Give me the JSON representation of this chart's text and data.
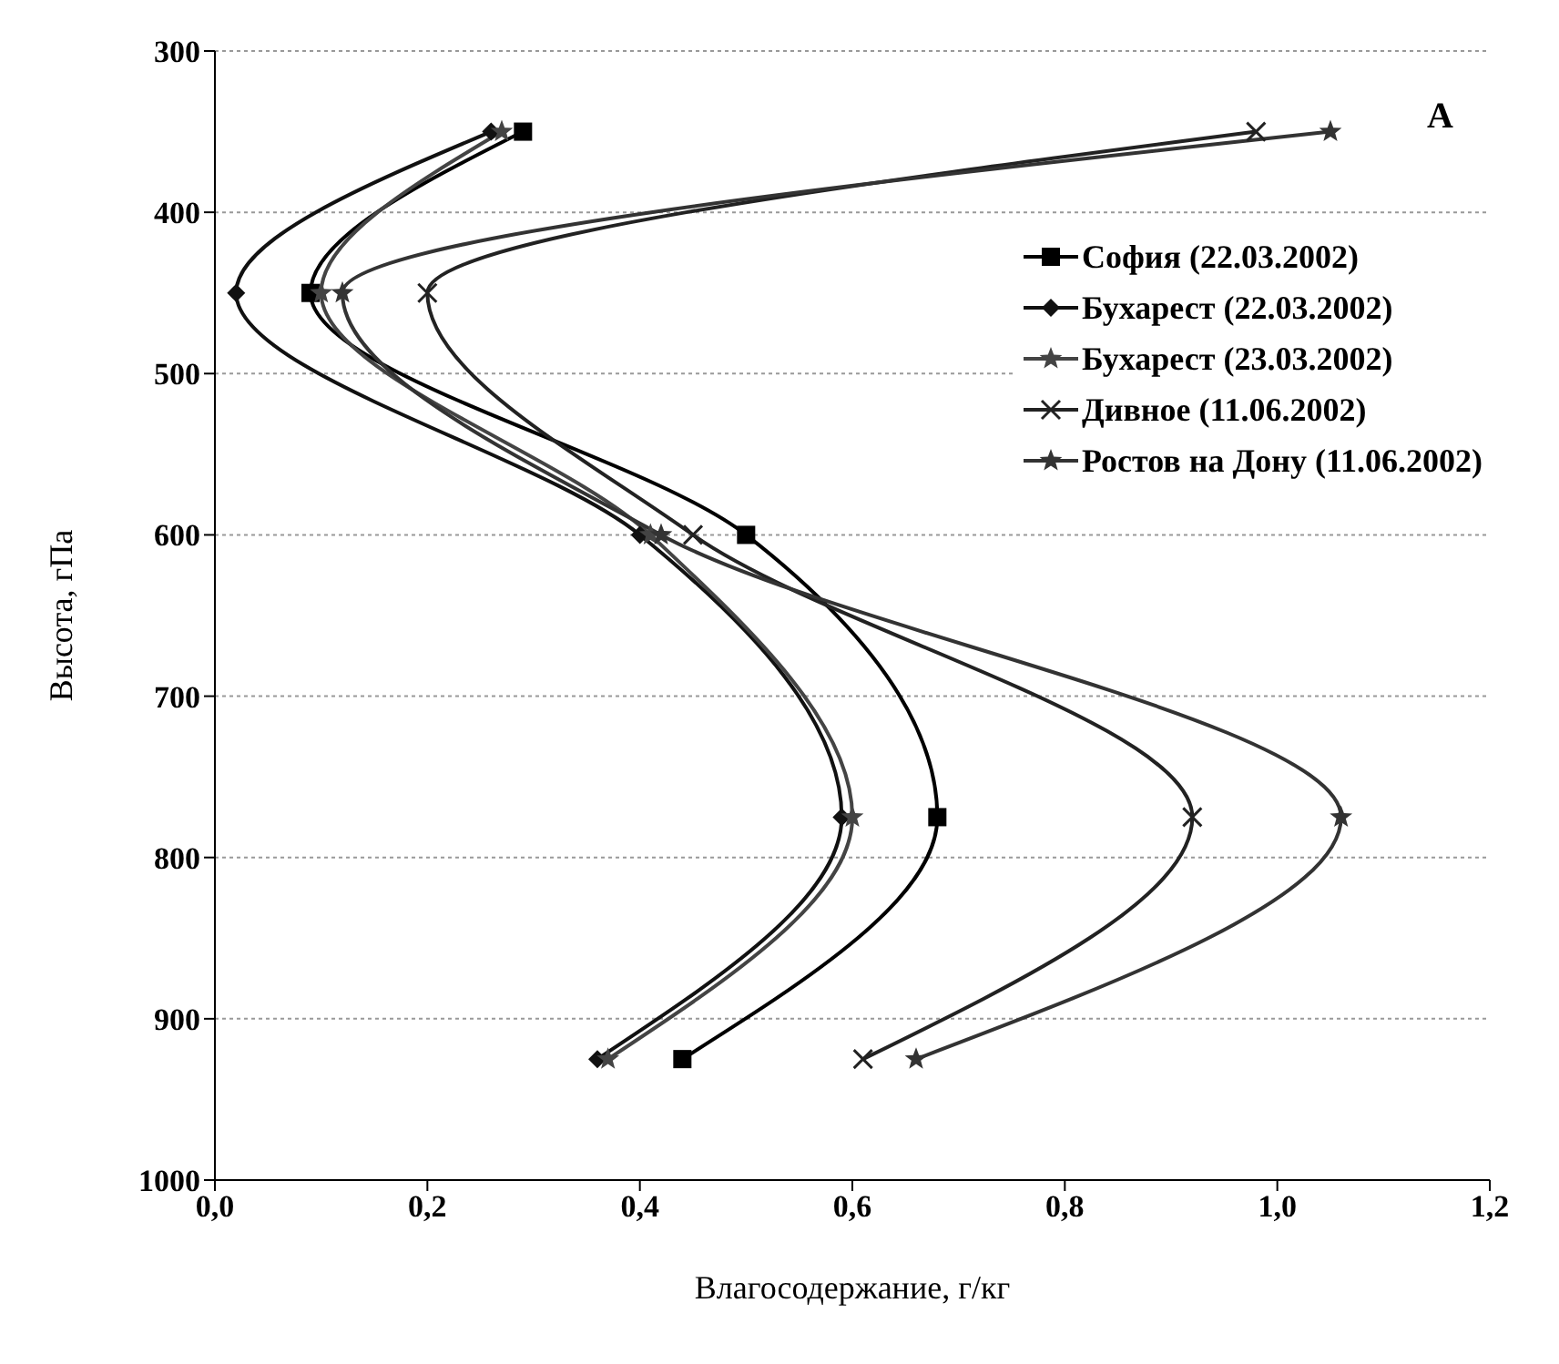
{
  "chart_data": {
    "type": "line",
    "orientation": "horizontal",
    "xlabel": "Влагосодержание, г/кг",
    "ylabel": "Высота, гПа",
    "annotations": [
      "A"
    ],
    "x": [
      350,
      450,
      600,
      775,
      925
    ],
    "xlim": [
      0,
      1.2
    ],
    "xticks": [
      {
        "value": 0,
        "label": "0,0"
      },
      {
        "value": 0.2,
        "label": "0,2"
      },
      {
        "value": 0.4,
        "label": "0,4"
      },
      {
        "value": 0.6,
        "label": "0,6"
      },
      {
        "value": 0.8,
        "label": "0,8"
      },
      {
        "value": 1,
        "label": "1,0"
      },
      {
        "value": 1.2,
        "label": "1,2"
      }
    ],
    "ylim": [
      1000,
      300
    ],
    "yticks": [
      300,
      400,
      500,
      600,
      700,
      800,
      900,
      1000
    ],
    "grid": "y",
    "legend": "top right",
    "series": [
      {
        "name": "София (22.03.2002)",
        "color": "#000000",
        "marker": "square",
        "values": [
          0.29,
          0.09,
          0.5,
          0.68,
          0.44
        ]
      },
      {
        "name": "Бухарест (22.03.2002)",
        "color": "#111111",
        "marker": "diamond",
        "values": [
          0.26,
          0.02,
          0.4,
          0.59,
          0.36
        ]
      },
      {
        "name": "Бухарест (23.03.2002)",
        "color": "#444444",
        "marker": "star",
        "values": [
          0.27,
          0.1,
          0.41,
          0.6,
          0.37
        ]
      },
      {
        "name": "Дивное (11.06.2002)",
        "color": "#222222",
        "marker": "cross",
        "values": [
          0.98,
          0.2,
          0.45,
          0.92,
          0.61
        ]
      },
      {
        "name": "Ростов на Дону (11.06.2002)",
        "color": "#333333",
        "marker": "star",
        "values": [
          1.05,
          0.12,
          0.42,
          1.06,
          0.66
        ]
      }
    ]
  }
}
